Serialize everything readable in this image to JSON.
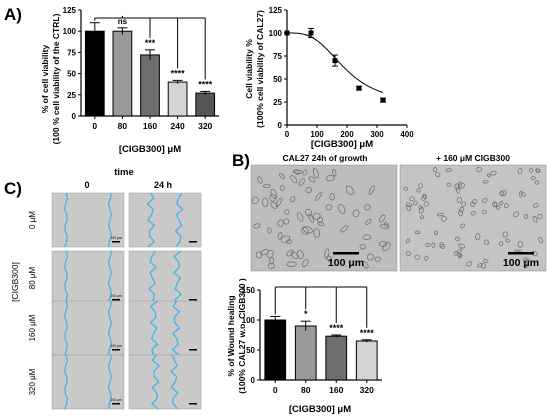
{
  "panel_labels": {
    "a": "A)",
    "b": "B)",
    "c": "C)"
  },
  "chart_data": [
    {
      "id": "bar-a",
      "type": "bar",
      "title": "",
      "xlabel": "[CIGB300] μM",
      "ylabel_line1": "% of cell viability",
      "ylabel_line2": "(100 % cell viability of the CTRL)",
      "categories": [
        "0",
        "80",
        "160",
        "240",
        "320"
      ],
      "values": [
        100,
        100,
        72,
        40,
        27
      ],
      "errors": [
        10,
        4,
        6,
        2,
        2
      ],
      "significance": [
        "",
        "ns",
        "***",
        "****",
        "****"
      ],
      "bar_colors": [
        "#000000",
        "#9a9a9a",
        "#6e6e6e",
        "#d4d4d4",
        "#555555"
      ],
      "ylim": [
        0,
        125
      ],
      "yticks": [
        "0",
        "25",
        "50",
        "75",
        "100",
        "125"
      ]
    },
    {
      "id": "curve-a",
      "type": "scatter",
      "title": "",
      "xlabel": "[CIGB300] μM",
      "ylabel_line1": "Cell viability %",
      "ylabel_line2": "(100% cell viability of CAL27)",
      "x": [
        0,
        80,
        160,
        240,
        320
      ],
      "y": [
        100,
        100,
        70,
        40,
        27
      ],
      "errors": [
        0,
        5,
        6,
        2,
        2
      ],
      "fit": {
        "top": 100,
        "bottom": 22,
        "ec50": 195,
        "hill": 3.2
      },
      "xlim": [
        0,
        400
      ],
      "ylim": [
        0,
        125
      ],
      "xticks": [
        "0",
        "100",
        "200",
        "300",
        "400"
      ],
      "yticks": [
        "0",
        "25",
        "50",
        "75",
        "100",
        "125"
      ]
    },
    {
      "id": "bar-b",
      "type": "bar",
      "title": "",
      "xlabel": "[CIGB300] μM",
      "ylabel_line1": "% of Wound healing",
      "ylabel_line2": "(100% CAL27 w.o. CIGB300 )",
      "categories": [
        "0",
        "80",
        "160",
        "320"
      ],
      "values": [
        100,
        90,
        73,
        65
      ],
      "errors": [
        6,
        8,
        2,
        2
      ],
      "significance": [
        "",
        "*",
        "****",
        "****"
      ],
      "bar_colors": [
        "#000000",
        "#9a9a9a",
        "#6e6e6e",
        "#d4d4d4"
      ],
      "ylim": [
        0,
        150
      ],
      "yticks": [
        "0",
        "50",
        "100",
        "150"
      ]
    }
  ],
  "micrographs_b": {
    "left_title": "CAL27 24h of growth",
    "right_title": "+ 160 μM CIGB300",
    "scale_label": "100 μm"
  },
  "wound_grid": {
    "header": "time",
    "columns": [
      "0",
      "24 h"
    ],
    "group_label": "[CIGB300]",
    "rows": [
      "0 μM",
      "80 μM",
      "160 μM",
      "320 μM"
    ],
    "scale_label": "100 μm"
  }
}
